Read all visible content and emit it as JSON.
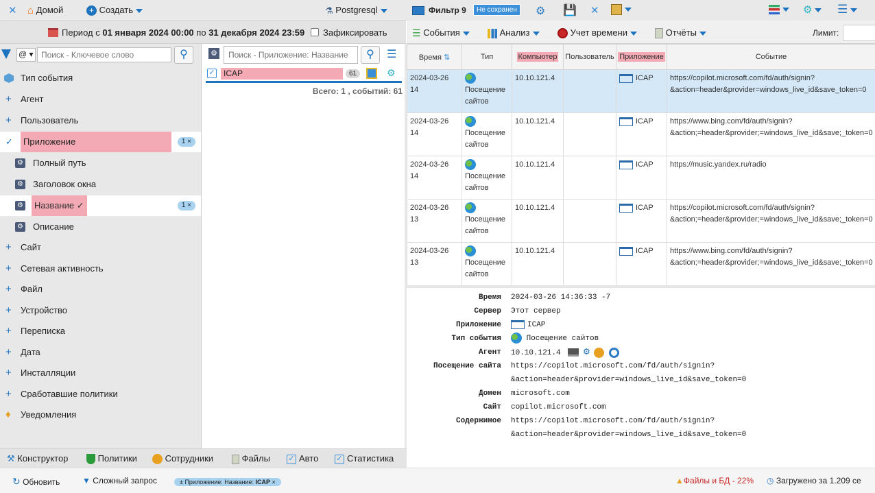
{
  "topbar": {
    "home_label": "Домой",
    "create_label": "Создать",
    "db_label": "Postgresql",
    "filter_label": "Фильтр 9",
    "not_saved_label": "Не сохранен"
  },
  "period": {
    "prefix": "Период с",
    "from": "01 января 2024 00:00",
    "mid": "по",
    "to": "31 декабря 2024 23:59",
    "fix_label": "Зафиксировать"
  },
  "left": {
    "search_mode": "@",
    "search_placeholder": "Поиск - Ключевое слово",
    "items": [
      {
        "label": "Тип события"
      },
      {
        "label": "Агент"
      },
      {
        "label": "Пользователь"
      },
      {
        "label": "Приложение",
        "badge": "1 ×"
      },
      {
        "label": "Полный путь"
      },
      {
        "label": "Заголовок окна"
      },
      {
        "label": "Название ✓",
        "badge": "1 ×"
      },
      {
        "label": "Описание"
      },
      {
        "label": "Сайт"
      },
      {
        "label": "Сетевая активность"
      },
      {
        "label": "Файл"
      },
      {
        "label": "Устройство"
      },
      {
        "label": "Переписка"
      },
      {
        "label": "Дата"
      },
      {
        "label": "Инсталляции"
      },
      {
        "label": "Сработавшие политики"
      },
      {
        "label": "Уведомления"
      }
    ]
  },
  "middle": {
    "search_placeholder": "Поиск - Приложение: Название",
    "item_label": "ICAP",
    "item_count": "61",
    "total": "Всего: 1 , событий: 61"
  },
  "rightmenu": {
    "events": "События",
    "analysis": "Анализ",
    "time": "Учет времени",
    "reports": "Отчёты",
    "limit": "Лимит:"
  },
  "grid": {
    "headers": [
      "Время",
      "Тип",
      "Компьютер",
      "Пользователь",
      "Приложение",
      "Событие"
    ],
    "rows": [
      {
        "time": "2024-03-26 14",
        "type": "Посещение сайтов",
        "pc": "10.10.121.4",
        "user": "",
        "app": "ICAP",
        "event1": "https://copilot.microsoft.com/fd/auth/signin?",
        "event2": "&action=header&provider=windows_live_id&save_token=0"
      },
      {
        "time": "2024-03-26 14",
        "type": "Посещение сайтов",
        "pc": "10.10.121.4",
        "user": "",
        "app": "ICAP",
        "event1": "https://www.bing.com/fd/auth/signin?",
        "event2": "&action;=header&provider;=windows_live_id&save;_token=0"
      },
      {
        "time": "2024-03-26 14",
        "type": "Посещение сайтов",
        "pc": "10.10.121.4",
        "user": "",
        "app": "ICAP",
        "event1": "https://music.yandex.ru/radio",
        "event2": ""
      },
      {
        "time": "2024-03-26 13",
        "type": "Посещение сайтов",
        "pc": "10.10.121.4",
        "user": "",
        "app": "ICAP",
        "event1": "https://copilot.microsoft.com/fd/auth/signin?",
        "event2": "&action;=header&provider;=windows_live_id&save;_token=0"
      },
      {
        "time": "2024-03-26 13",
        "type": "Посещение сайтов",
        "pc": "10.10.121.4",
        "user": "",
        "app": "ICAP",
        "event1": "https://www.bing.com/fd/auth/signin?",
        "event2": "&action;=header&provider;=windows_live_id&save;_token=0"
      }
    ]
  },
  "detail": {
    "time_k": "Время",
    "time_v": "2024-03-26 14:36:33 -7",
    "server_k": "Сервер",
    "server_v": "Этот сервер",
    "app_k": "Приложение",
    "app_v": "ICAP",
    "type_k": "Тип события",
    "type_v": "Посещение сайтов",
    "agent_k": "Агент",
    "agent_v": "10.10.121.4",
    "visit_k": "Посещение сайта",
    "visit_v1": "https://copilot.microsoft.com/fd/auth/signin?",
    "visit_v2": "&action=header&provider=windows_live_id&save_token=0",
    "domain_k": "Домен",
    "domain_v": "microsoft.com",
    "site_k": "Сайт",
    "site_v": "copilot.microsoft.com",
    "content_k": "Содержимое",
    "content_v1": "https://copilot.microsoft.com/fd/auth/signin?",
    "content_v2": "&action=header&provider=windows_live_id&save_token=0"
  },
  "tabs": [
    "Конструктор",
    "Политики",
    "Сотрудники",
    "Файлы",
    "Авто",
    "Статистика"
  ],
  "status": {
    "refresh": "Обновить",
    "complex": "Сложный запрос",
    "chip_prefix": "± Приложение: Название:",
    "chip_value": "ICAP",
    "chip_close": "×",
    "warn": "Файлы и БД - 22%",
    "loaded": "Загружено за 1.209 се"
  },
  "colors": {
    "accent": "#1e73be",
    "highlight": "#f4aab5",
    "selected_row": "#d4e8f8",
    "badge": "#a9d2ee"
  }
}
